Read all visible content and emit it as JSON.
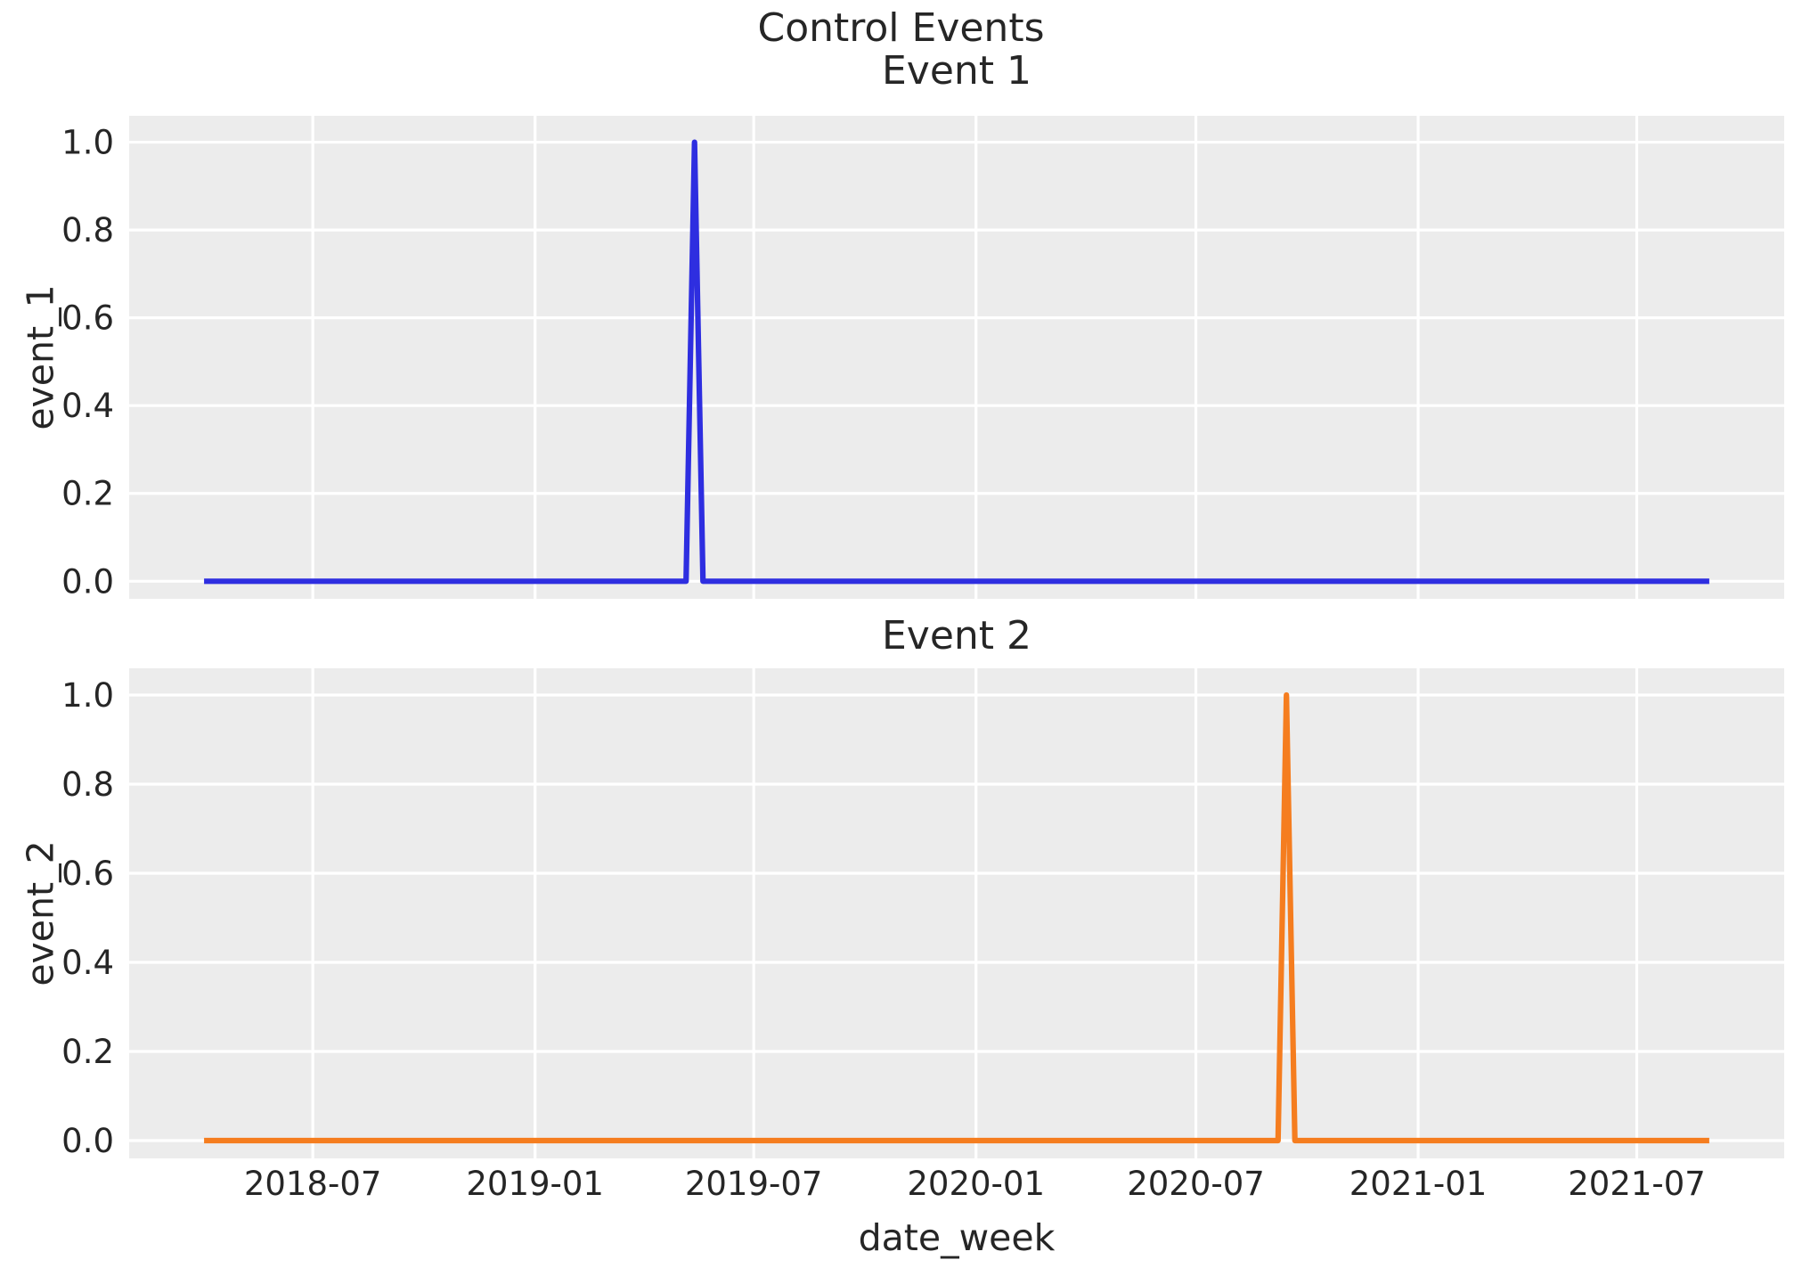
{
  "suptitle": "Control Events",
  "xlabel": "date_week",
  "colors": {
    "figure_background": "#ffffff",
    "plot_background": "#ececec",
    "grid": "#ffffff",
    "text": "#262626",
    "event_1_line": "#2e2ee0",
    "event_2_line": "#f57d1f"
  },
  "axes": {
    "xlim": [
      "2018-01-30",
      "2021-10-31"
    ],
    "ylim": [
      -0.04,
      1.06
    ],
    "grid": "on",
    "xticks": [
      {
        "label": "2018-07",
        "date": "2018-07-01"
      },
      {
        "label": "2019-01",
        "date": "2019-01-01"
      },
      {
        "label": "2019-07",
        "date": "2019-07-01"
      },
      {
        "label": "2020-01",
        "date": "2020-01-01"
      },
      {
        "label": "2020-07",
        "date": "2020-07-01"
      },
      {
        "label": "2021-01",
        "date": "2021-01-01"
      },
      {
        "label": "2021-07",
        "date": "2021-07-01"
      }
    ],
    "yticks": [
      {
        "label": "0.0",
        "value": 0.0
      },
      {
        "label": "0.2",
        "value": 0.2
      },
      {
        "label": "0.4",
        "value": 0.4
      },
      {
        "label": "0.6",
        "value": 0.6
      },
      {
        "label": "0.8",
        "value": 0.8
      },
      {
        "label": "1.0",
        "value": 1.0
      }
    ]
  },
  "chart_data": [
    {
      "type": "line",
      "title": "Event 1",
      "ylabel": "event_1",
      "series_name": "event_1",
      "color": "#2e2ee0",
      "x_start": "2018-04-02",
      "x_end": "2021-08-30",
      "frequency": "weekly",
      "baseline_value": 0.0,
      "spike": {
        "date": "2019-05-13",
        "value": 1.0
      },
      "points": [
        [
          "2018-04-02",
          0.0
        ],
        [
          "2019-05-06",
          0.0
        ],
        [
          "2019-05-13",
          1.0
        ],
        [
          "2019-05-20",
          0.0
        ],
        [
          "2021-08-30",
          0.0
        ]
      ]
    },
    {
      "type": "line",
      "title": "Event 2",
      "ylabel": "event_2",
      "series_name": "event_2",
      "color": "#f57d1f",
      "x_start": "2018-04-02",
      "x_end": "2021-08-30",
      "frequency": "weekly",
      "baseline_value": 0.0,
      "spike": {
        "date": "2020-09-14",
        "value": 1.0
      },
      "points": [
        [
          "2018-04-02",
          0.0
        ],
        [
          "2020-09-07",
          0.0
        ],
        [
          "2020-09-14",
          1.0
        ],
        [
          "2020-09-21",
          0.0
        ],
        [
          "2021-08-30",
          0.0
        ]
      ]
    }
  ]
}
